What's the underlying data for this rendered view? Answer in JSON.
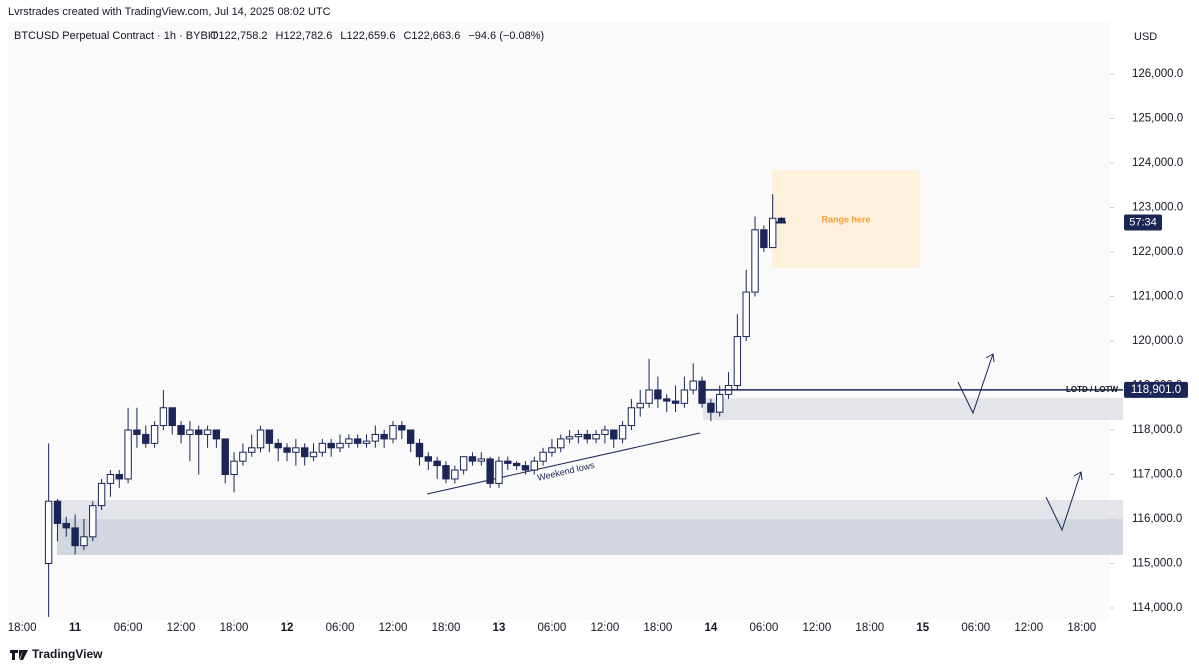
{
  "chart_data": {
    "type": "candlestick",
    "title": "Lvrstrades created with TradingView.com, Jul 14, 2025 08:02 UTC",
    "symbol": "BTCUSD Perpetual Contract · 1h · BYBIT",
    "legend_values": [
      "O122,758.2",
      "H122,782.6",
      "L122,659.6",
      "C122,663.6",
      "−94.6 (−0.08%)"
    ],
    "currency": "USD",
    "countdown": "57:34",
    "level": {
      "name": "LOTD / LOTW",
      "value": 118901,
      "label": "118,901.0"
    },
    "annotations": [
      "Range here",
      "Weekend lows"
    ],
    "footer": "TradingView",
    "up_color": "#ffffff",
    "down_color": "#1b2656",
    "edge_color": "#1b2656",
    "ylim": [
      113730,
      127170
    ],
    "yticks": [
      {
        "value": 114000,
        "label": "114,000.0"
      },
      {
        "value": 115000,
        "label": "115,000.0"
      },
      {
        "value": 116000,
        "label": "116,000.0"
      },
      {
        "value": 117000,
        "label": "117,000.0"
      },
      {
        "value": 118000,
        "label": "118,000.0"
      },
      {
        "value": 119000,
        "label": "119,000.0"
      },
      {
        "value": 120000,
        "label": "120,000.0"
      },
      {
        "value": 121000,
        "label": "121,000.0"
      },
      {
        "value": 122000,
        "label": "122,000.0"
      },
      {
        "value": 123000,
        "label": "123,000.0"
      },
      {
        "value": 124000,
        "label": "124,000.0"
      },
      {
        "value": 125000,
        "label": "125,000.0"
      },
      {
        "value": 126000,
        "label": "126,000.0"
      }
    ],
    "xlim": [
      -1.6,
      123.2
    ],
    "xticks": [
      {
        "value": 0,
        "label": "18:00"
      },
      {
        "value": 6,
        "label": "11"
      },
      {
        "value": 12,
        "label": "06:00"
      },
      {
        "value": 18,
        "label": "12:00"
      },
      {
        "value": 24,
        "label": "18:00"
      },
      {
        "value": 30,
        "label": "12"
      },
      {
        "value": 36,
        "label": "06:00"
      },
      {
        "value": 42,
        "label": "12:00"
      },
      {
        "value": 48,
        "label": "18:00"
      },
      {
        "value": 54,
        "label": "13"
      },
      {
        "value": 60,
        "label": "06:00"
      },
      {
        "value": 66,
        "label": "12:00"
      },
      {
        "value": 72,
        "label": "18:00"
      },
      {
        "value": 78,
        "label": "14"
      },
      {
        "value": 84,
        "label": "06:00"
      },
      {
        "value": 90,
        "label": "12:00"
      },
      {
        "value": 96,
        "label": "18:00"
      },
      {
        "value": 102,
        "label": "15"
      },
      {
        "value": 108,
        "label": "06:00"
      },
      {
        "value": 114,
        "label": "12:00"
      },
      {
        "value": 120,
        "label": "18:00"
      }
    ],
    "x": [
      3,
      4,
      5,
      6,
      7,
      8,
      9,
      10,
      11,
      12,
      13,
      14,
      15,
      16,
      17,
      18,
      19,
      20,
      21,
      22,
      23,
      24,
      25,
      26,
      27,
      28,
      29,
      30,
      31,
      32,
      33,
      34,
      35,
      36,
      37,
      38,
      39,
      40,
      41,
      42,
      43,
      44,
      45,
      46,
      47,
      48,
      49,
      50,
      51,
      52,
      53,
      54,
      55,
      56,
      57,
      58,
      59,
      60,
      61,
      62,
      63,
      64,
      65,
      66,
      67,
      68,
      69,
      70,
      71,
      72,
      73,
      74,
      75,
      76,
      77,
      78,
      79,
      80,
      81,
      82,
      83,
      84,
      85,
      86
    ],
    "open": [
      115000,
      116400,
      115900,
      115800,
      115400,
      115600,
      116300,
      116800,
      117000,
      116900,
      118000,
      117900,
      117700,
      118100,
      118500,
      118100,
      117900,
      118000,
      117900,
      118000,
      117800,
      117000,
      117300,
      117500,
      117600,
      118000,
      117700,
      117600,
      117500,
      117600,
      117400,
      117500,
      117700,
      117600,
      117700,
      117800,
      117700,
      117750,
      117900,
      117800,
      118100,
      118000,
      117700,
      117400,
      117300,
      117200,
      116900,
      117100,
      117400,
      117300,
      117350,
      116800,
      117300,
      117250,
      117200,
      117100,
      117300,
      117500,
      117600,
      117800,
      117850,
      117900,
      117800,
      117900,
      118000,
      117800,
      118100,
      118500,
      118600,
      118900,
      118700,
      118650,
      118600,
      118900,
      119100,
      118600,
      118400,
      118800,
      119000,
      120100,
      121100,
      122500,
      122100,
      122758.2
    ],
    "high": [
      117700,
      116450,
      116050,
      116100,
      116000,
      116400,
      116900,
      117100,
      117100,
      118500,
      118500,
      118100,
      118200,
      118900,
      118500,
      118200,
      118200,
      118100,
      118100,
      118000,
      117800,
      117500,
      117700,
      117900,
      118100,
      118000,
      117800,
      117700,
      117800,
      117700,
      117700,
      117800,
      117800,
      117900,
      117900,
      117900,
      117900,
      118100,
      118000,
      118200,
      118200,
      118000,
      117800,
      117500,
      117400,
      117300,
      117200,
      117400,
      117500,
      117500,
      117400,
      117400,
      117400,
      117300,
      117300,
      117400,
      117600,
      117800,
      117900,
      118000,
      118000,
      118000,
      118000,
      118100,
      118000,
      118200,
      118700,
      118900,
      119600,
      119200,
      118800,
      119000,
      119200,
      119500,
      119200,
      118700,
      119000,
      119300,
      120600,
      121600,
      122800,
      122600,
      123300,
      122782.6
    ],
    "low": [
      113800,
      115500,
      115600,
      115200,
      115300,
      115500,
      116200,
      116500,
      116700,
      116800,
      117600,
      117600,
      117600,
      118000,
      117900,
      117700,
      117300,
      117000,
      117600,
      117600,
      116800,
      116600,
      117200,
      117400,
      117500,
      117500,
      117300,
      117300,
      117200,
      117200,
      117300,
      117400,
      117400,
      117500,
      117600,
      117600,
      117600,
      117600,
      117600,
      117700,
      117800,
      117500,
      117200,
      117100,
      116900,
      116800,
      116800,
      117000,
      117200,
      117200,
      116700,
      116700,
      117100,
      117100,
      117000,
      117000,
      117200,
      117400,
      117500,
      117700,
      117700,
      117700,
      117700,
      117700,
      117600,
      117700,
      118000,
      118300,
      118500,
      118500,
      118400,
      118400,
      118500,
      118800,
      118500,
      118200,
      118300,
      118700,
      118900,
      120000,
      121000,
      122000,
      122100,
      122659.6
    ],
    "close": [
      116400,
      115900,
      115800,
      115400,
      115600,
      116300,
      116800,
      117000,
      116900,
      118000,
      117900,
      117700,
      118100,
      118500,
      118100,
      117900,
      118000,
      117900,
      118000,
      117800,
      117000,
      117300,
      117500,
      117600,
      118000,
      117700,
      117600,
      117500,
      117600,
      117400,
      117500,
      117700,
      117600,
      117700,
      117800,
      117700,
      117750,
      117900,
      117800,
      118100,
      118000,
      117700,
      117400,
      117300,
      117200,
      116900,
      117100,
      117400,
      117300,
      117350,
      116800,
      117300,
      117250,
      117200,
      117100,
      117300,
      117500,
      117600,
      117800,
      117850,
      117900,
      117800,
      117900,
      118000,
      117800,
      118100,
      118500,
      118600,
      118900,
      118700,
      118650,
      118600,
      118900,
      119100,
      118600,
      118400,
      118800,
      119000,
      120100,
      121100,
      122500,
      122100,
      122758,
      122663.6
    ]
  }
}
